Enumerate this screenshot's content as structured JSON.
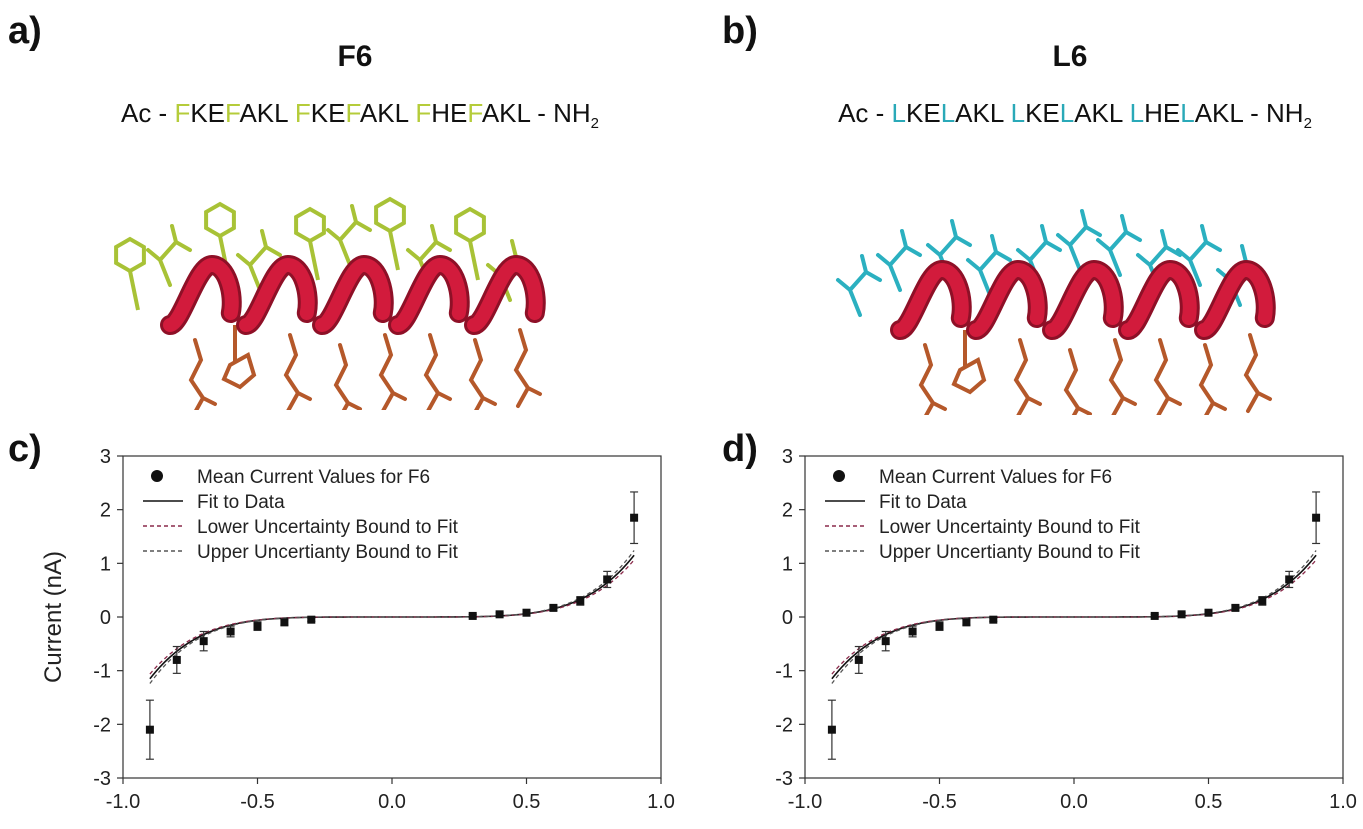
{
  "panels": {
    "a": {
      "letter": "a)",
      "title": "F6",
      "sequence": {
        "prefix": "Ac - ",
        "groups": [
          [
            {
              "t": "F",
              "h": true
            },
            {
              "t": "KE",
              "h": false
            },
            {
              "t": "F",
              "h": true
            },
            {
              "t": "AKL",
              "h": false
            }
          ],
          [
            {
              "t": "F",
              "h": true
            },
            {
              "t": "KE",
              "h": false
            },
            {
              "t": "F",
              "h": true
            },
            {
              "t": "AKL",
              "h": false
            }
          ],
          [
            {
              "t": "F",
              "h": true
            },
            {
              "t": "HE",
              "h": false
            },
            {
              "t": "F",
              "h": true
            },
            {
              "t": "AKL",
              "h": false
            }
          ]
        ],
        "suffix": " - NH",
        "suffix_sub": "2"
      }
    },
    "b": {
      "letter": "b)",
      "title": "L6",
      "sequence": {
        "prefix": "Ac - ",
        "groups": [
          [
            {
              "t": "L",
              "h": true
            },
            {
              "t": "KE",
              "h": false
            },
            {
              "t": "L",
              "h": true
            },
            {
              "t": "AKL",
              "h": false
            }
          ],
          [
            {
              "t": "L",
              "h": true
            },
            {
              "t": "KE",
              "h": false
            },
            {
              "t": "L",
              "h": true
            },
            {
              "t": "AKL",
              "h": false
            }
          ],
          [
            {
              "t": "L",
              "h": true
            },
            {
              "t": "HE",
              "h": false
            },
            {
              "t": "L",
              "h": true
            },
            {
              "t": "AKL",
              "h": false
            }
          ]
        ],
        "suffix": " - NH",
        "suffix_sub": "2"
      }
    },
    "c": {
      "letter": "c)"
    },
    "d": {
      "letter": "d)"
    }
  },
  "colors": {
    "f6_highlight": "#b5cc3a",
    "l6_highlight": "#2aa9b8",
    "helix": "#d21b3c",
    "helix_dark": "#8e1027",
    "sidechain_brown": "#b5582a",
    "f6_sidechain": "#a8c236",
    "l6_sidechain": "#2bb0c0",
    "text": "#111111"
  },
  "chart_data": [
    {
      "id": "c",
      "type": "scatter",
      "title": "",
      "xlabel": "",
      "ylabel": "Current (nA)",
      "xlim": [
        -1.0,
        1.0
      ],
      "ylim": [
        -3,
        3
      ],
      "xticks": [
        -1.0,
        -0.5,
        0.0,
        0.5,
        1.0
      ],
      "xtick_labels": [
        "-1.0",
        "-0.5",
        "0.0",
        "0.5",
        "1.0"
      ],
      "yticks": [
        -3,
        -2,
        -1,
        0,
        1,
        2,
        3
      ],
      "ytick_labels": [
        "-3",
        "-2",
        "-1",
        "0",
        "1",
        "2",
        "3"
      ],
      "grid": false,
      "legend_position": "top-left",
      "legend": [
        "Mean Current Values for F6",
        "Fit to Data",
        "Lower Uncertainty Bound to Fit",
        "Upper Uncertianty Bound to Fit"
      ],
      "series": [
        {
          "name": "Mean Current Values for F6",
          "kind": "points",
          "x": [
            -0.9,
            -0.8,
            -0.7,
            -0.6,
            -0.5,
            -0.4,
            -0.3,
            0.3,
            0.4,
            0.5,
            0.6,
            0.7,
            0.8,
            0.9
          ],
          "y": [
            -2.1,
            -0.8,
            -0.45,
            -0.27,
            -0.17,
            -0.1,
            -0.05,
            0.02,
            0.05,
            0.08,
            0.17,
            0.3,
            0.7,
            1.85
          ],
          "yerr": [
            0.55,
            0.25,
            0.18,
            0.1,
            0.08,
            0.05,
            0.03,
            0.03,
            0.03,
            0.04,
            0.05,
            0.08,
            0.15,
            0.48
          ]
        },
        {
          "name": "Fit to Data",
          "kind": "line",
          "coef": 1.95,
          "power": 5,
          "dash": "",
          "color": "#111111"
        },
        {
          "name": "Lower Uncertainty Bound to Fit",
          "kind": "line",
          "coef": 1.8,
          "power": 5,
          "dash": "4,3",
          "color": "#8a2a4a"
        },
        {
          "name": "Upper Uncertianty Bound to Fit",
          "kind": "line",
          "coef": 2.1,
          "power": 5,
          "dash": "4,3",
          "color": "#555555"
        }
      ]
    },
    {
      "id": "d",
      "type": "scatter",
      "title": "",
      "xlabel": "",
      "ylabel": "",
      "xlim": [
        -1.0,
        1.0
      ],
      "ylim": [
        -3,
        3
      ],
      "xticks": [
        -1.0,
        -0.5,
        0.0,
        0.5,
        1.0
      ],
      "xtick_labels": [
        "-1.0",
        "-0.5",
        "0.0",
        "0.5",
        "1.0"
      ],
      "yticks": [
        -3,
        -2,
        -1,
        0,
        1,
        2,
        3
      ],
      "ytick_labels": [
        "-3",
        "-2",
        "-1",
        "0",
        "1",
        "2",
        "3"
      ],
      "grid": false,
      "legend_position": "top-left",
      "legend": [
        "Mean Current Values for F6",
        "Fit to Data",
        "Lower Uncertainty Bound to Fit",
        "Upper Uncertianty Bound to Fit"
      ],
      "series": [
        {
          "name": "Mean Current Values for F6",
          "kind": "points",
          "x": [
            -0.9,
            -0.8,
            -0.7,
            -0.6,
            -0.5,
            -0.4,
            -0.3,
            0.3,
            0.4,
            0.5,
            0.6,
            0.7,
            0.8,
            0.9
          ],
          "y": [
            -2.1,
            -0.8,
            -0.45,
            -0.27,
            -0.17,
            -0.1,
            -0.05,
            0.02,
            0.05,
            0.08,
            0.17,
            0.3,
            0.7,
            1.85
          ],
          "yerr": [
            0.55,
            0.25,
            0.18,
            0.1,
            0.08,
            0.05,
            0.03,
            0.03,
            0.03,
            0.04,
            0.05,
            0.08,
            0.15,
            0.48
          ]
        },
        {
          "name": "Fit to Data",
          "kind": "line",
          "coef": 1.95,
          "power": 5,
          "dash": "",
          "color": "#111111"
        },
        {
          "name": "Lower Uncertainty Bound to Fit",
          "kind": "line",
          "coef": 1.8,
          "power": 5,
          "dash": "4,3",
          "color": "#8a2a4a"
        },
        {
          "name": "Upper Uncertianty Bound to Fit",
          "kind": "line",
          "coef": 2.1,
          "power": 5,
          "dash": "4,3",
          "color": "#555555"
        }
      ]
    }
  ]
}
